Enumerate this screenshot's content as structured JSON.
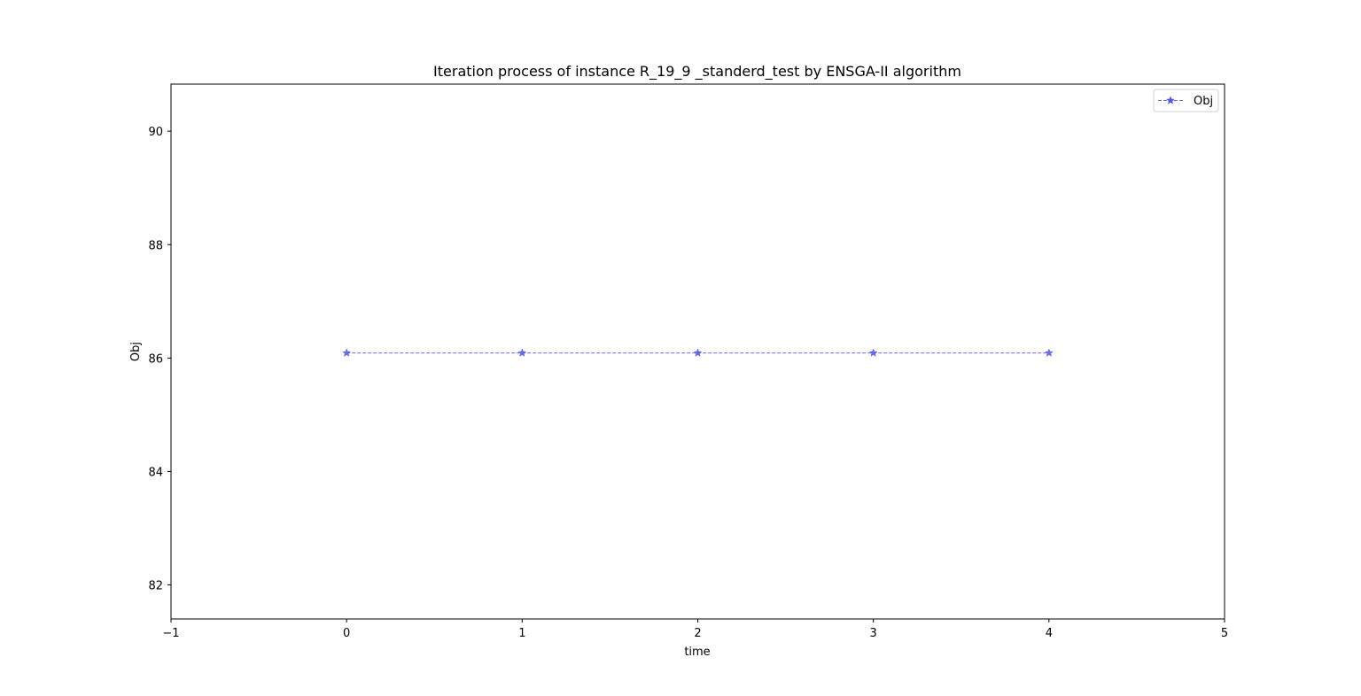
{
  "chart_data": {
    "type": "line",
    "title": "Iteration process of instance R_19_9 _standerd_test by ENSGA-II algorithm",
    "xlabel": "time",
    "ylabel": "Obj",
    "xlim": [
      -1,
      5
    ],
    "ylim": [
      81.4,
      90.83
    ],
    "xticks": [
      -1,
      0,
      1,
      2,
      3,
      4,
      5
    ],
    "xtick_labels": [
      "−1",
      "0",
      "1",
      "2",
      "3",
      "4",
      "5"
    ],
    "yticks": [
      82,
      84,
      86,
      88,
      90
    ],
    "ytick_labels": [
      "82",
      "84",
      "86",
      "88",
      "90"
    ],
    "grid": false,
    "legend_position": "top-right",
    "series": [
      {
        "name": "Obj",
        "x": [
          0,
          1,
          2,
          3,
          4
        ],
        "values": [
          86.09,
          86.09,
          86.09,
          86.09,
          86.09
        ],
        "color": "#5555ee",
        "line_style": "dashed",
        "marker": "star"
      }
    ]
  }
}
